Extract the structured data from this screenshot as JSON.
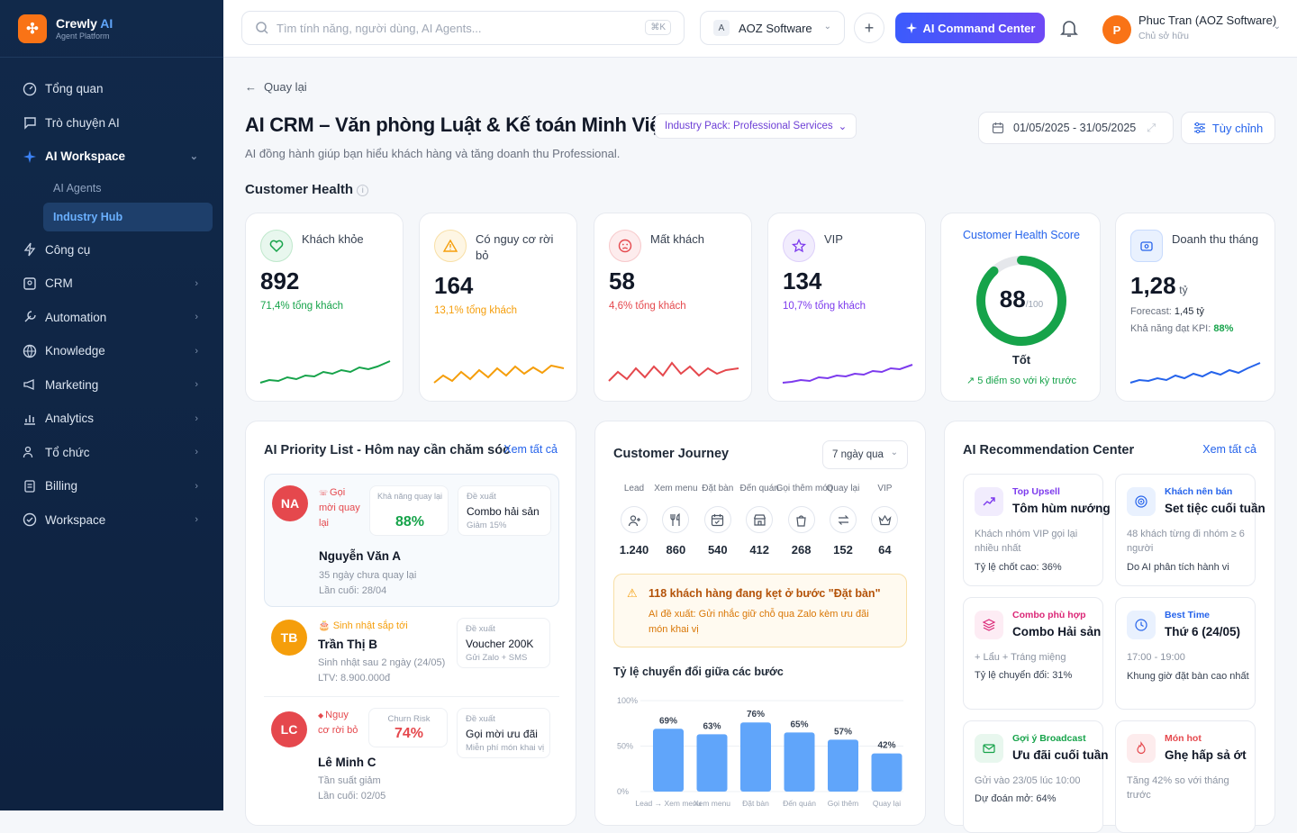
{
  "app": {
    "name": "Crewly",
    "name_ai": "AI",
    "sub": "Agent Platform"
  },
  "sidebar": {
    "items": [
      {
        "label": "Tổng quan"
      },
      {
        "label": "Trò chuyện AI"
      },
      {
        "label": "AI Workspace"
      },
      {
        "label": "Công cụ"
      },
      {
        "label": "CRM"
      },
      {
        "label": "Automation"
      },
      {
        "label": "Knowledge"
      },
      {
        "label": "Marketing"
      },
      {
        "label": "Analytics"
      },
      {
        "label": "Tổ chức"
      },
      {
        "label": "Billing"
      },
      {
        "label": "Workspace"
      }
    ],
    "subitems": [
      {
        "label": "AI Agents"
      },
      {
        "label": "Industry Hub"
      }
    ]
  },
  "topbar": {
    "search_placeholder": "Tìm tính năng, người dùng, AI Agents...",
    "shortcut": "⌘K",
    "workspace_badge": "A",
    "workspace": "AOZ Software",
    "ai_button": "AI Command Center",
    "user_initial": "P",
    "user_name": "Phuc Tran (AOZ Software)",
    "user_role": "Chủ sở hữu"
  },
  "page": {
    "back": "Quay lại",
    "title": "AI CRM – Văn phòng Luật & Kế toán Minh Việt",
    "pack": "Industry Pack: Professional Services",
    "subtitle": "AI đồng hành giúp bạn hiểu khách hàng và tăng doanh thu Professional.",
    "date_range": "01/05/2025 - 31/05/2025",
    "customize": "Tùy chỉnh",
    "section": "Customer Health"
  },
  "kpis": [
    {
      "label": "Khách khỏe",
      "value": "892",
      "pct": "71,4% tổng khách",
      "color": "#16a34a"
    },
    {
      "label": "Có nguy cơ rời bỏ",
      "value": "164",
      "pct": "13,1% tổng khách",
      "color": "#f59e0b"
    },
    {
      "label": "Mất khách",
      "value": "58",
      "pct": "4,6% tổng khách",
      "color": "#e5484d"
    },
    {
      "label": "VIP",
      "value": "134",
      "pct": "10,7% tổng khách",
      "color": "#7c3aed"
    }
  ],
  "health": {
    "title": "Customer Health Score",
    "score": "88",
    "max": "/100",
    "score_fraction": 0.88,
    "status": "Tốt",
    "delta": "5 điểm so với kỳ trước"
  },
  "revenue": {
    "label": "Doanh thu tháng",
    "value": "1,28",
    "unit": "tỷ",
    "forecast_label": "Forecast:",
    "forecast": "1,45 tỷ",
    "kpi_label": "Khả năng đạt KPI:",
    "kpi": "88%"
  },
  "priority": {
    "title": "AI Priority List - Hôm nay cần chăm sóc",
    "see_all": "Xem tất cả",
    "rows": [
      {
        "initials": "NA",
        "tag": "Gọi mời quay lại",
        "name": "Nguyễn Văn A",
        "detail": "35 ngày chưa quay lại",
        "detail2": "Lần cuối: 28/04",
        "metric_label": "Khả năng quay lại",
        "metric": "88%",
        "suggest_label": "Đề xuất",
        "suggest": "Combo hải sản",
        "suggest_sub": "Giảm 15%"
      },
      {
        "initials": "TB",
        "tag": "Sinh nhật sắp tới",
        "name": "Trần Thị B",
        "detail": "Sinh nhật sau 2 ngày (24/05)",
        "detail2": "LTV: 8.900.000đ",
        "suggest_label": "Đề xuất",
        "suggest": "Voucher 200K",
        "suggest_sub": "Gửi Zalo + SMS"
      },
      {
        "initials": "LC",
        "tag": "Nguy cơ rời bỏ",
        "name": "Lê Minh C",
        "detail": "Tần suất giảm",
        "detail2": "Lần cuối: 02/05",
        "metric_label": "Churn Risk",
        "metric": "74%",
        "suggest_label": "Đề xuất",
        "suggest": "Gọi mời ưu đãi",
        "suggest_sub": "Miễn phí món khai vị"
      }
    ]
  },
  "journey": {
    "title": "Customer Journey",
    "range": "7 ngày qua",
    "stages": [
      {
        "label": "Lead",
        "value": "1.240"
      },
      {
        "label": "Xem menu",
        "value": "860"
      },
      {
        "label": "Đặt bàn",
        "value": "540"
      },
      {
        "label": "Đến quán",
        "value": "412"
      },
      {
        "label": "Gọi thêm món",
        "value": "268"
      },
      {
        "label": "Quay lại",
        "value": "152"
      },
      {
        "label": "VIP",
        "value": "64"
      }
    ],
    "alert_title": "118 khách hàng đang kẹt ở bước \"Đặt bàn\"",
    "alert_body": "AI đề xuất: Gửi nhắc giữ chỗ qua Zalo kèm ưu đãi món khai vị",
    "conv_title": "Tỷ lệ chuyển đổi giữa các bước"
  },
  "chart_data": {
    "type": "bar",
    "categories": [
      "Lead → Xem menu",
      "Xem menu",
      "Đặt bàn",
      "Đến quán",
      "Gọi thêm",
      "Quay lại"
    ],
    "values": [
      69,
      63,
      76,
      65,
      57,
      42
    ],
    "value_labels": [
      "69%",
      "63%",
      "76%",
      "65%",
      "57%",
      "42%"
    ],
    "yticks": [
      "100%",
      "50%",
      "0%"
    ],
    "ylim": [
      0,
      100
    ]
  },
  "recs": {
    "title": "AI Recommendation Center",
    "see_all": "Xem tất cả",
    "items": [
      {
        "tag": "Top Upsell",
        "head": "Tôm hùm nướng",
        "desc": "Khách nhóm VIP gọi lại nhiều nhất",
        "meta": "Tỷ lệ chốt cao: 36%",
        "color": "#7c3aed"
      },
      {
        "tag": "Khách nên bán",
        "head": "Set tiệc cuối tuần",
        "desc": "48 khách từng đi nhóm ≥ 6 người",
        "meta": "Do AI phân tích hành vi",
        "color": "#2563eb"
      },
      {
        "tag": "Combo phù hợp",
        "head": "Combo Hải sản",
        "desc": "+ Lẩu + Tráng miệng",
        "meta": "Tỷ lệ chuyển đổi: 31%",
        "color": "#db2777"
      },
      {
        "tag": "Best Time",
        "head": "Thứ 6 (24/05)",
        "desc": "17:00 - 19:00",
        "desc2": "Khung giờ đặt bàn cao nhất",
        "color": "#2563eb"
      },
      {
        "tag": "Gợi ý Broadcast",
        "head": "Ưu đãi cuối tuần",
        "desc": "Gửi vào 23/05 lúc 10:00",
        "meta": "Dự đoán mở: 64%",
        "color": "#16a34a"
      },
      {
        "tag": "Món hot",
        "head": "Ghẹ hấp sả ớt",
        "desc": "Tăng 42% so với tháng trước",
        "color": "#e5484d"
      }
    ]
  }
}
